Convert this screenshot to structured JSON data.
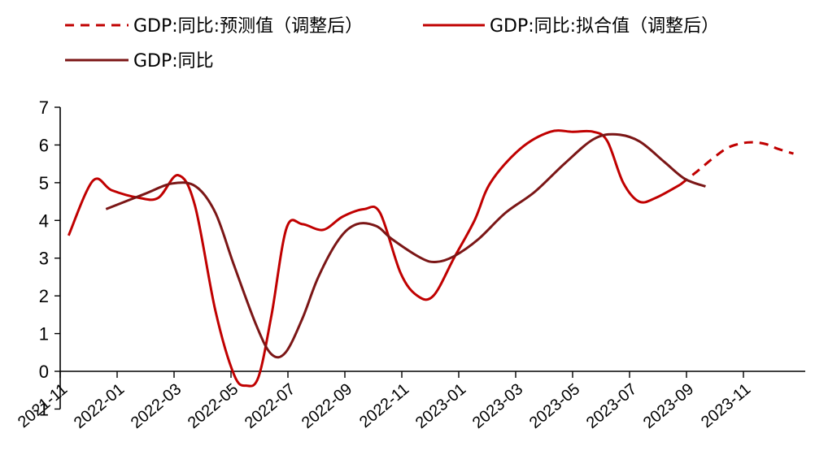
{
  "chart_data": {
    "type": "line",
    "title": "",
    "xlabel": "",
    "ylabel": "",
    "ylim": [
      -1,
      7
    ],
    "yticks": [
      -1,
      0,
      1,
      2,
      3,
      4,
      5,
      6,
      7
    ],
    "x_tick_labels": [
      "2021-11",
      "2022-01",
      "2022-03",
      "2022-05",
      "2022-07",
      "2022-09",
      "2022-11",
      "2023-01",
      "2023-03",
      "2023-05",
      "2023-07",
      "2023-09",
      "2023-11"
    ],
    "legend_position": "top",
    "series": [
      {
        "name": "GDP:同比:预测值（调整后）",
        "color": "#c00000",
        "style": "dashed",
        "points": [
          [
            "2023-08-26",
            4.95
          ],
          [
            "2023-09-13",
            5.3
          ],
          [
            "2023-09-30",
            5.65
          ],
          [
            "2023-10-16",
            5.93
          ],
          [
            "2023-11-01",
            6.05
          ],
          [
            "2023-11-13",
            6.07
          ],
          [
            "2023-11-26",
            6.02
          ],
          [
            "2023-12-08",
            5.9
          ],
          [
            "2023-12-25",
            5.77
          ]
        ]
      },
      {
        "name": "GDP:同比:拟合值（调整后）",
        "color": "#c00000",
        "style": "solid",
        "points": [
          [
            "2021-11-10",
            3.6
          ],
          [
            "2021-12-06",
            5.05
          ],
          [
            "2021-12-26",
            4.8
          ],
          [
            "2022-01-24",
            4.6
          ],
          [
            "2022-02-14",
            4.6
          ],
          [
            "2022-03-07",
            5.2
          ],
          [
            "2022-03-25",
            4.4
          ],
          [
            "2022-04-16",
            1.6
          ],
          [
            "2022-05-06",
            -0.1
          ],
          [
            "2022-05-19",
            -0.38
          ],
          [
            "2022-06-01",
            -0.15
          ],
          [
            "2022-06-15",
            1.5
          ],
          [
            "2022-07-01",
            3.8
          ],
          [
            "2022-07-18",
            3.9
          ],
          [
            "2022-08-09",
            3.75
          ],
          [
            "2022-08-30",
            4.1
          ],
          [
            "2022-09-22",
            4.3
          ],
          [
            "2022-10-09",
            4.2
          ],
          [
            "2022-10-31",
            2.6
          ],
          [
            "2022-11-18",
            2.0
          ],
          [
            "2022-12-05",
            2.0
          ],
          [
            "2022-12-27",
            3.0
          ],
          [
            "2023-01-18",
            4.0
          ],
          [
            "2023-02-04",
            5.0
          ],
          [
            "2023-03-08",
            5.9
          ],
          [
            "2023-04-09",
            6.35
          ],
          [
            "2023-05-03",
            6.35
          ],
          [
            "2023-05-25",
            6.35
          ],
          [
            "2023-06-09",
            6.1
          ],
          [
            "2023-06-26",
            5.0
          ],
          [
            "2023-07-13",
            4.5
          ],
          [
            "2023-07-31",
            4.6
          ],
          [
            "2023-08-26",
            4.95
          ]
        ]
      },
      {
        "name": "GDP:同比",
        "color": "#7b1616",
        "style": "solid",
        "points": [
          [
            "2021-12-20",
            4.3
          ],
          [
            "2022-01-30",
            4.7
          ],
          [
            "2022-02-29",
            4.98
          ],
          [
            "2022-03-26",
            4.9
          ],
          [
            "2022-04-16",
            4.2
          ],
          [
            "2022-05-06",
            2.8
          ],
          [
            "2022-05-30",
            1.2
          ],
          [
            "2022-06-15",
            0.45
          ],
          [
            "2022-06-30",
            0.5
          ],
          [
            "2022-07-18",
            1.4
          ],
          [
            "2022-08-04",
            2.5
          ],
          [
            "2022-08-26",
            3.5
          ],
          [
            "2022-09-14",
            3.9
          ],
          [
            "2022-10-05",
            3.85
          ],
          [
            "2022-10-22",
            3.5
          ],
          [
            "2022-11-22",
            3.0
          ],
          [
            "2022-12-08",
            2.9
          ],
          [
            "2022-12-27",
            3.05
          ],
          [
            "2023-01-22",
            3.5
          ],
          [
            "2023-02-20",
            4.2
          ],
          [
            "2023-03-23",
            4.75
          ],
          [
            "2023-04-24",
            5.5
          ],
          [
            "2023-05-25",
            6.15
          ],
          [
            "2023-06-18",
            6.28
          ],
          [
            "2023-07-13",
            6.1
          ],
          [
            "2023-08-09",
            5.55
          ],
          [
            "2023-08-31",
            5.1
          ],
          [
            "2023-09-22",
            4.9
          ]
        ]
      }
    ]
  }
}
